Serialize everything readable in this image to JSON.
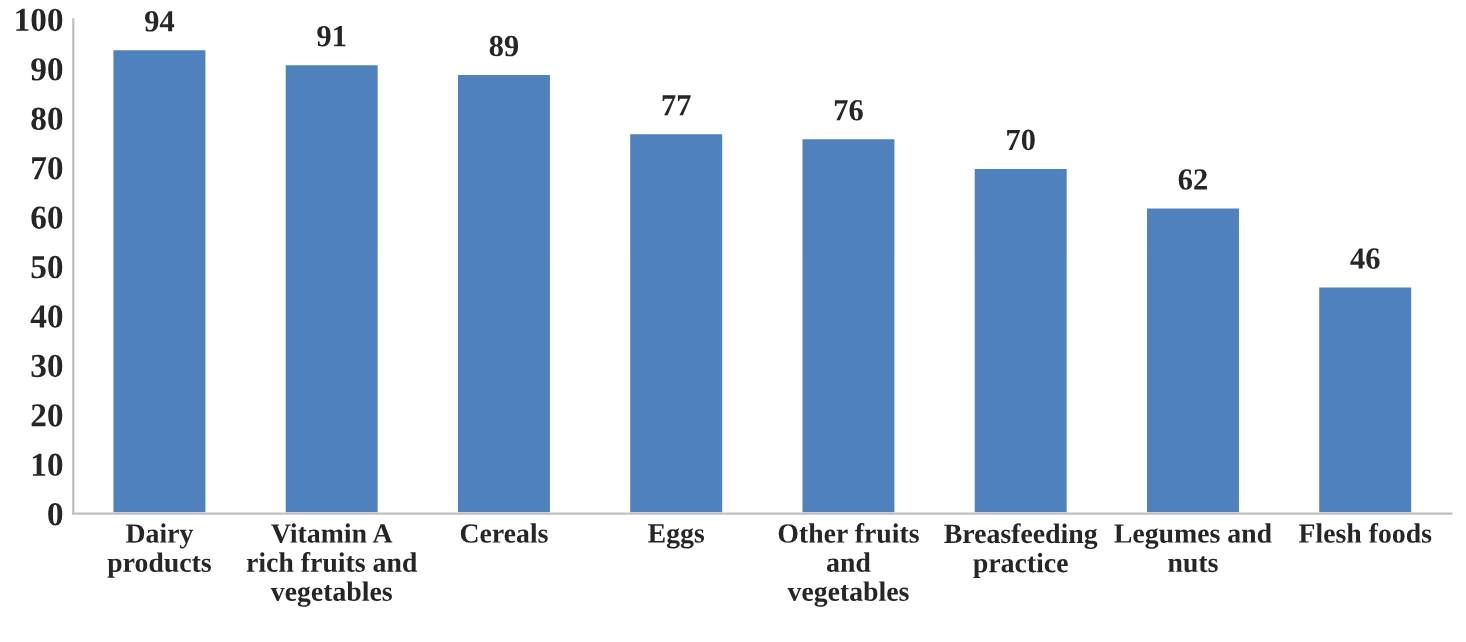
{
  "chart_data": {
    "type": "bar",
    "categories": [
      "Dairy\nproducts",
      "Vitamin A\nrich fruits and\nvegetables",
      "Cereals",
      "Eggs",
      "Other fruits\nand\nvegetables",
      "Breasfeeding\npractice",
      "Legumes and\nnuts",
      "Flesh foods"
    ],
    "values": [
      94,
      91,
      89,
      77,
      76,
      70,
      62,
      46
    ],
    "color": "#4f81bd",
    "ylim": [
      0,
      100
    ],
    "yticks": [
      0,
      10,
      20,
      30,
      40,
      50,
      60,
      70,
      80,
      90,
      100
    ],
    "data_labels": true,
    "grid": false,
    "legend": false
  }
}
